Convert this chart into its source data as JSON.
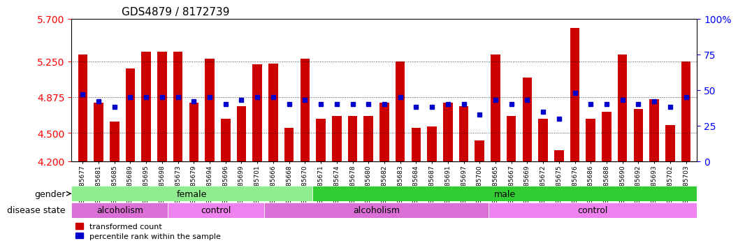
{
  "title": "GDS4879 / 8172739",
  "samples": [
    "GSM1085677",
    "GSM1085681",
    "GSM1085685",
    "GSM1085689",
    "GSM1085695",
    "GSM1085698",
    "GSM1085673",
    "GSM1085679",
    "GSM1085694",
    "GSM1085696",
    "GSM1085699",
    "GSM1085701",
    "GSM1085666",
    "GSM1085668",
    "GSM1085670",
    "GSM1085671",
    "GSM1085674",
    "GSM1085678",
    "GSM1085680",
    "GSM1085682",
    "GSM1085683",
    "GSM1085684",
    "GSM1085687",
    "GSM1085691",
    "GSM1085697",
    "GSM1085700",
    "GSM1085665",
    "GSM1085667",
    "GSM1085669",
    "GSM1085672",
    "GSM1085675",
    "GSM1085676",
    "GSM1085686",
    "GSM1085688",
    "GSM1085690",
    "GSM1085692",
    "GSM1085693",
    "GSM1085702",
    "GSM1085703"
  ],
  "red_values": [
    5.32,
    4.82,
    4.62,
    5.18,
    5.35,
    5.35,
    5.35,
    4.82,
    5.28,
    4.65,
    4.78,
    5.22,
    5.23,
    4.55,
    5.28,
    4.65,
    4.68,
    4.68,
    4.68,
    4.82,
    5.25,
    4.55,
    4.57,
    4.82,
    4.78,
    4.42,
    5.32,
    4.68,
    5.08,
    4.65,
    4.32,
    5.6,
    4.65,
    4.72,
    5.32,
    4.75,
    4.85,
    4.58,
    5.25
  ],
  "blue_values": [
    47,
    42,
    38,
    45,
    45,
    45,
    45,
    42,
    45,
    40,
    43,
    45,
    45,
    40,
    43,
    40,
    40,
    40,
    40,
    40,
    45,
    38,
    38,
    40,
    40,
    33,
    43,
    40,
    43,
    35,
    30,
    48,
    40,
    40,
    43,
    40,
    42,
    38,
    45
  ],
  "gender": [
    "female",
    "female",
    "female",
    "female",
    "female",
    "female",
    "female",
    "female",
    "female",
    "female",
    "female",
    "female",
    "female",
    "female",
    "female",
    "male",
    "male",
    "male",
    "male",
    "male",
    "male",
    "male",
    "male",
    "male",
    "male",
    "male",
    "male",
    "male",
    "male",
    "male",
    "male",
    "male",
    "male",
    "male",
    "male",
    "male",
    "male",
    "male",
    "male"
  ],
  "disease_state": [
    "alcoholism",
    "alcoholism",
    "alcoholism",
    "alcoholism",
    "alcoholism",
    "alcoholism",
    "control",
    "control",
    "control",
    "control",
    "control",
    "control",
    "alcoholism",
    "alcoholism",
    "alcoholism",
    "alcoholism",
    "alcoholism",
    "alcoholism",
    "alcoholism",
    "alcoholism",
    "alcoholism",
    "alcoholism",
    "alcoholism",
    "alcoholism",
    "alcoholism",
    "alcoholism",
    "control",
    "control",
    "control",
    "control",
    "control",
    "control",
    "control",
    "control",
    "control",
    "control",
    "control",
    "control",
    "control"
  ],
  "y_min": 4.2,
  "y_max": 5.7,
  "y_ticks": [
    4.2,
    4.5,
    4.875,
    5.25,
    5.7
  ],
  "y_right_ticks": [
    0,
    25,
    50,
    75,
    100
  ],
  "bar_color": "#cc0000",
  "blue_color": "#0000cc",
  "female_color": "#90ee90",
  "male_color": "#32cd32",
  "alcoholism_color": "#da70d6",
  "control_color": "#ee82ee",
  "grid_color": "#aaaaaa",
  "bg_color": "#ffffff"
}
